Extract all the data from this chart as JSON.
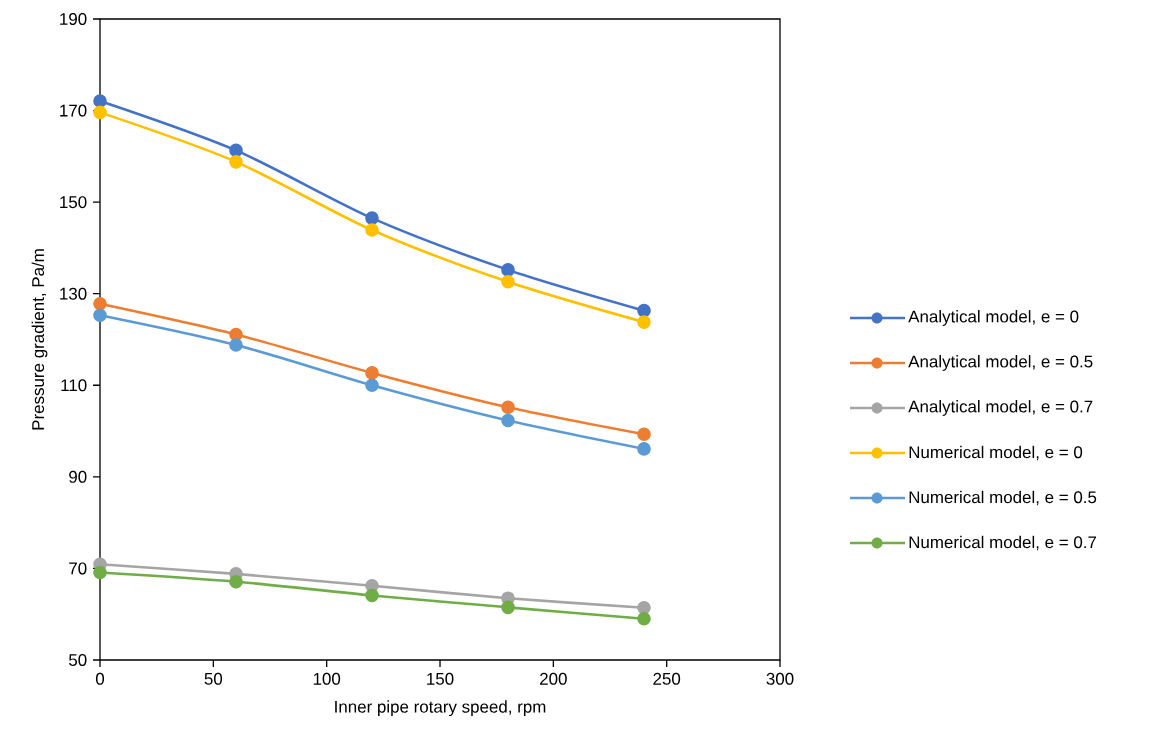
{
  "chart_data": {
    "type": "line",
    "xlabel": "Inner pipe rotary speed, rpm",
    "ylabel": "Pressure gradient, Pa/m",
    "x": [
      0,
      60,
      120,
      180,
      240
    ],
    "series": [
      {
        "name": "Analytical model, e = 0",
        "color": "#4472c4",
        "values": [
          172.1,
          161.3,
          146.5,
          135.2,
          126.3
        ]
      },
      {
        "name": "Analytical model, e = 0.5",
        "color": "#ed7d31",
        "values": [
          127.8,
          121.1,
          112.7,
          105.2,
          99.3
        ]
      },
      {
        "name": "Analytical model, e = 0.7",
        "color": "#a5a5a5",
        "values": [
          70.9,
          68.8,
          66.2,
          63.5,
          61.4
        ]
      },
      {
        "name": "Numerical model, e = 0",
        "color": "#ffc000",
        "values": [
          169.6,
          158.8,
          143.9,
          132.6,
          123.8
        ]
      },
      {
        "name": "Numerical model, e = 0.5",
        "color": "#5b9bd5",
        "values": [
          125.3,
          118.8,
          110.0,
          102.3,
          96.1
        ]
      },
      {
        "name": "Numerical model, e = 0.7",
        "color": "#70ad47",
        "values": [
          69.1,
          67.1,
          64.1,
          61.5,
          59.0
        ]
      }
    ],
    "xlim": [
      0,
      300
    ],
    "ylim": [
      50,
      190
    ],
    "xticks": [
      0,
      50,
      100,
      150,
      200,
      250,
      300
    ],
    "yticks": [
      50,
      70,
      90,
      110,
      130,
      150,
      170,
      190
    ],
    "grid": false,
    "legend": "right",
    "marker": "circle",
    "line_style": "solid"
  }
}
